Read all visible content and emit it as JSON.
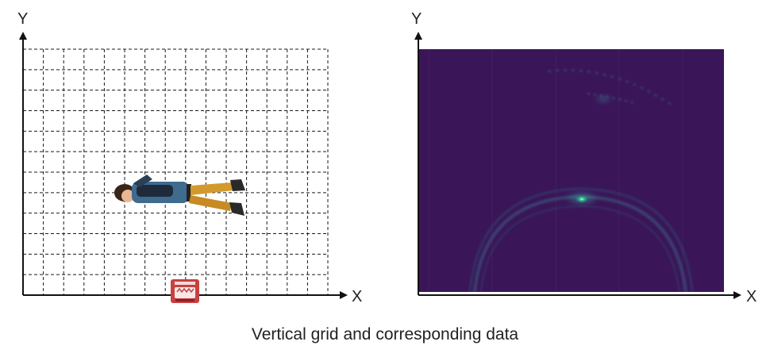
{
  "left_panel": {
    "y_axis_label": "Y",
    "x_axis_label": "X",
    "grid": {
      "columns": 15,
      "rows": 12,
      "line_style": "dashed",
      "color": "#1a1a1a"
    },
    "person_icon": "person-lying-horizontal-icon",
    "radar_icon": "radar-device-icon",
    "radar_color": "#c94040"
  },
  "right_panel": {
    "y_axis_label": "Y",
    "x_axis_label": "X",
    "heatmap_icon": "radar-heatmap",
    "background_color": "#3a1457",
    "hotspot_color": "#2fe0a0"
  },
  "caption": "Vertical grid and corresponding data"
}
